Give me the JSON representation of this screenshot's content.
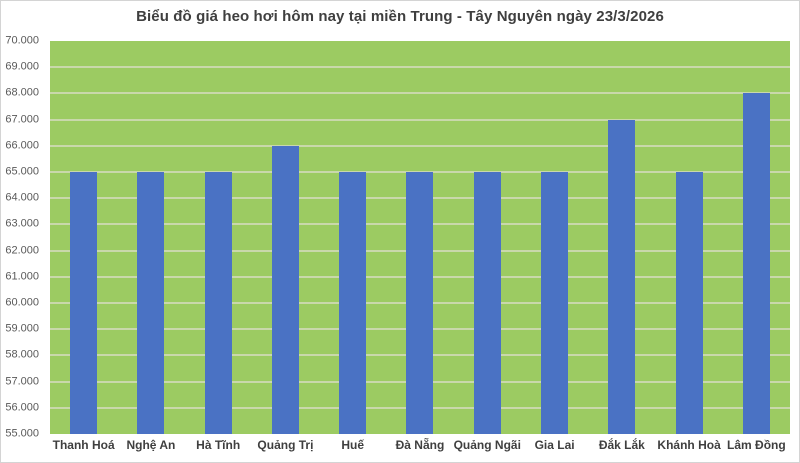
{
  "window": {
    "background": "#ffffff",
    "border_color": "#d4d4d4"
  },
  "chart_data": {
    "type": "bar",
    "title": "Biểu đồ giá heo hơi hôm nay tại miền Trung - Tây Nguyên ngày 23/3/2026",
    "categories": [
      "Thanh Hoá",
      "Nghệ An",
      "Hà Tĩnh",
      "Quảng Trị",
      "Huế",
      "Đà Nẵng",
      "Quảng Ngãi",
      "Gia Lai",
      "Đắk Lắk",
      "Khánh Hoà",
      "Lâm Đồng"
    ],
    "values": [
      65000,
      65000,
      65000,
      66000,
      65000,
      65000,
      65000,
      65000,
      67000,
      65000,
      68000
    ],
    "xlabel": "",
    "ylabel": "",
    "ylim": [
      55000,
      70000
    ],
    "ytick_step": 1000,
    "ytick_labels": [
      "55.000",
      "56.000",
      "57.000",
      "58.000",
      "59.000",
      "60.000",
      "61.000",
      "62.000",
      "63.000",
      "64.000",
      "65.000",
      "66.000",
      "67.000",
      "68.000",
      "69.000",
      "70.000"
    ],
    "grid": "horizontal",
    "legend": "none",
    "colors": {
      "bar": "#4a72c4",
      "plot_background": "#9ccb62",
      "gridline": "#c9d8ab",
      "title_text": "#3f3f3f",
      "axis_text": "#595959",
      "xlabel_text": "#3f3f3f"
    }
  }
}
